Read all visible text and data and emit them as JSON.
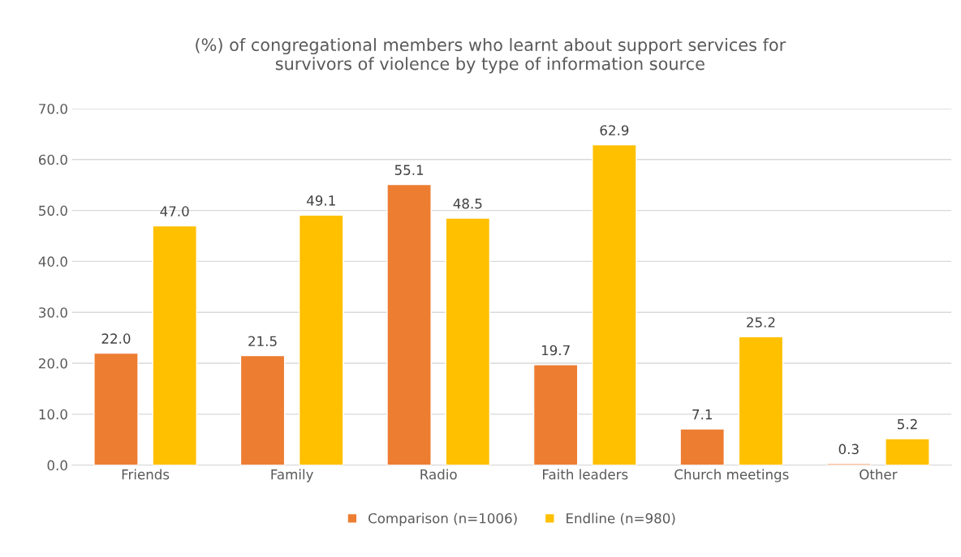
{
  "chart_data": {
    "type": "bar",
    "title": "(%) of congregational members who learnt about support services for\nsurvivors of violence by type of information source",
    "categories": [
      "Friends",
      "Family",
      "Radio",
      "Faith leaders",
      "Church meetings",
      "Other"
    ],
    "series": [
      {
        "name": "Comparison (n=1006)",
        "color": "#ed7d31",
        "values": [
          22.0,
          21.5,
          55.1,
          19.7,
          7.1,
          0.3
        ],
        "value_labels": [
          "22.0",
          "21.5",
          "55.1",
          "19.7",
          "7.1",
          "0.3"
        ]
      },
      {
        "name": "Endline (n=980)",
        "color": "#ffc000",
        "values": [
          47.0,
          49.1,
          48.5,
          62.9,
          25.2,
          5.2
        ],
        "value_labels": [
          "47.0",
          "49.1",
          "48.5",
          "62.9",
          "25.2",
          "5.2"
        ]
      }
    ],
    "ylim": [
      0,
      70
    ],
    "yticks": [
      {
        "value": 0,
        "label": "0.0"
      },
      {
        "value": 10,
        "label": "10.0"
      },
      {
        "value": 20,
        "label": "20.0"
      },
      {
        "value": 30,
        "label": "30.0"
      },
      {
        "value": 40,
        "label": "40.0"
      },
      {
        "value": 50,
        "label": "50.0"
      },
      {
        "value": 60,
        "label": "60.0"
      },
      {
        "value": 70,
        "label": "70.0"
      }
    ],
    "grid": "y",
    "legend": "bottom"
  }
}
